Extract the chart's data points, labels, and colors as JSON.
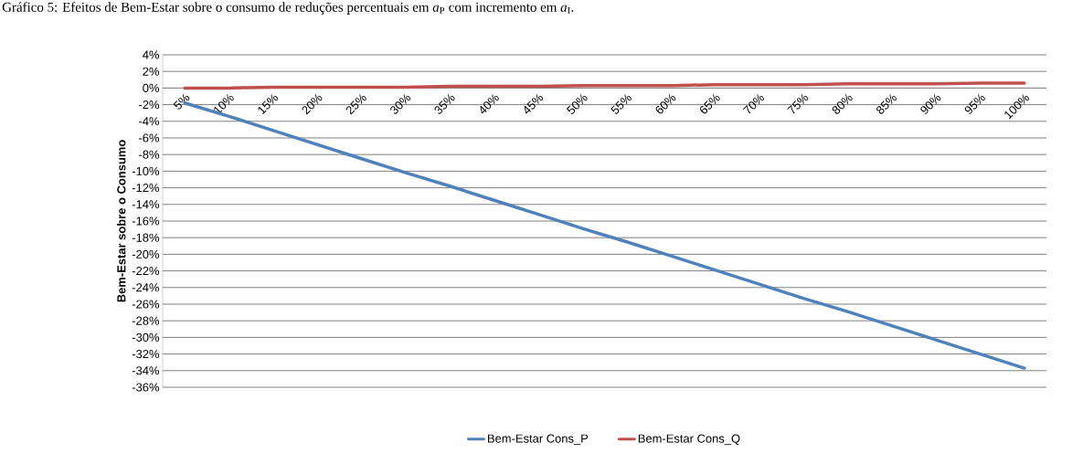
{
  "chart_data": {
    "type": "line",
    "title": "Gráfico 5: Efeitos de Bem-Estar sobre o consumo de reduções percentuais em *a*$_{P}$ com incremento em *a*$_{I}$.",
    "ylabel": "Bem-Estar sobre o Consumo",
    "categories": [
      "5%",
      "10%",
      "15%",
      "20%",
      "25%",
      "30%",
      "35%",
      "40%",
      "45%",
      "50%",
      "55%",
      "60%",
      "65%",
      "70%",
      "75%",
      "80%",
      "85%",
      "90%",
      "95%",
      "100%"
    ],
    "series": [
      {
        "name": "Bem-Estar Cons_P",
        "color": "#4f81bd",
        "values": [
          -1.8,
          -3.4,
          -5.1,
          -6.8,
          -8.5,
          -10.2,
          -11.8,
          -13.5,
          -15.2,
          -16.9,
          -18.5,
          -20.2,
          -21.9,
          -23.6,
          -25.3,
          -26.9,
          -28.6,
          -30.3,
          -32.0,
          -33.7
        ]
      },
      {
        "name": "Bem-Estar Cons_Q",
        "color": "#c0504d",
        "values": [
          0.0,
          0.0,
          0.1,
          0.1,
          0.1,
          0.1,
          0.2,
          0.2,
          0.2,
          0.3,
          0.3,
          0.3,
          0.4,
          0.4,
          0.4,
          0.5,
          0.5,
          0.5,
          0.6,
          0.6
        ]
      }
    ],
    "ylim": [
      -36,
      4
    ],
    "yticks": [
      {
        "value": 4,
        "label": "4%"
      },
      {
        "value": 2,
        "label": "2%"
      },
      {
        "value": 0,
        "label": "0%"
      },
      {
        "value": -2,
        "label": "-2%"
      },
      {
        "value": -4,
        "label": "-4%"
      },
      {
        "value": -6,
        "label": "-6%"
      },
      {
        "value": -8,
        "label": "-8%"
      },
      {
        "value": -10,
        "label": "-10%"
      },
      {
        "value": -12,
        "label": "-12%"
      },
      {
        "value": -14,
        "label": "-14%"
      },
      {
        "value": -16,
        "label": "-16%"
      },
      {
        "value": -18,
        "label": "-18%"
      },
      {
        "value": -20,
        "label": "-20%"
      },
      {
        "value": -22,
        "label": "-22%"
      },
      {
        "value": -24,
        "label": "-24%"
      },
      {
        "value": -26,
        "label": "-26%"
      },
      {
        "value": -28,
        "label": "-28%"
      },
      {
        "value": -30,
        "label": "-30%"
      },
      {
        "value": -32,
        "label": "-32%"
      },
      {
        "value": -34,
        "label": "-34%"
      },
      {
        "value": -36,
        "label": "-36%"
      }
    ],
    "grid": "y",
    "legend": "bottom",
    "marker": "none",
    "line_style": "solid"
  }
}
